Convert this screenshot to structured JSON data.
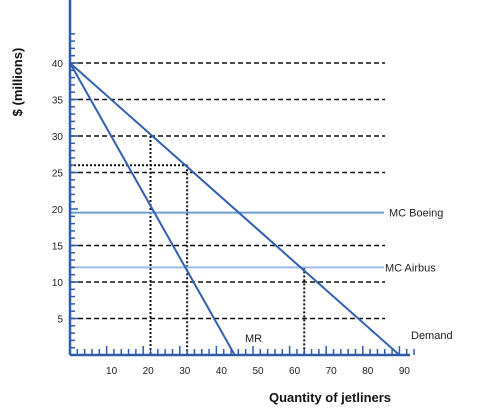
{
  "chart_data": {
    "type": "line",
    "ylabel": "$ (millions)",
    "xlabel": "Quantity of jetliners",
    "xlim": [
      0,
      95
    ],
    "ylim": [
      0,
      45
    ],
    "x_ticks": [
      10,
      20,
      30,
      40,
      50,
      60,
      70,
      80,
      90
    ],
    "y_ticks": [
      5,
      10,
      15,
      20,
      25,
      30,
      35,
      40
    ],
    "y_gridlines_dashed": [
      5,
      10,
      15,
      25,
      30,
      35,
      40
    ],
    "series": [
      {
        "name": "Demand",
        "x": [
          0,
          90
        ],
        "y": [
          40,
          0
        ],
        "color": "#3060B0"
      },
      {
        "name": "MR",
        "x": [
          0,
          45
        ],
        "y": [
          40,
          0
        ],
        "color": "#3060B0"
      }
    ],
    "horizontal_lines": [
      {
        "name": "MC Boeing",
        "y": 19.5,
        "color": "#6E9BD1"
      },
      {
        "name": "MC Airbus",
        "y": 12,
        "color": "#9BBCE6"
      }
    ],
    "dotted_guides": [
      {
        "x": 22,
        "y": 30
      },
      {
        "x": 32,
        "y": 26
      },
      {
        "x": 64,
        "y": 12
      }
    ]
  }
}
